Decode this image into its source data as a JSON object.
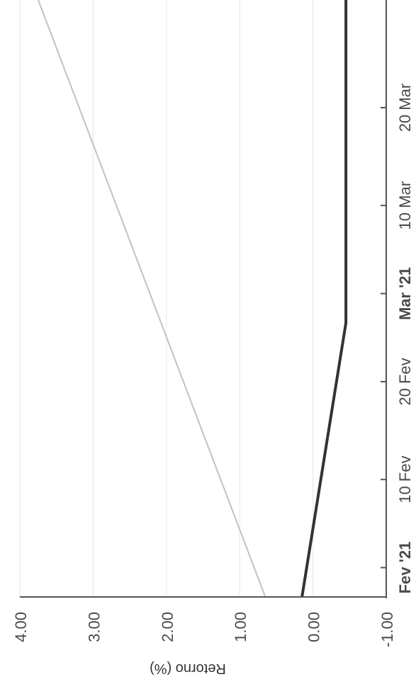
{
  "chart_data": {
    "type": "line",
    "title": "",
    "ylabel": "Retorno (%)",
    "xlabel": "",
    "grid": true,
    "ylim": [
      -1.0,
      4.0
    ],
    "y_ticks": [
      {
        "value": 4.0,
        "label": "4.00"
      },
      {
        "value": 3.0,
        "label": "3.00"
      },
      {
        "value": 2.0,
        "label": "2.00"
      },
      {
        "value": 1.0,
        "label": "1.00"
      },
      {
        "value": 0.0,
        "label": "0.00"
      },
      {
        "value": -1.0,
        "label": "-1.00"
      }
    ],
    "x_range": [
      "2021-01-29",
      "2021-03-31"
    ],
    "x_ticks": [
      {
        "date": "2021-02-01",
        "label": "Fev '21",
        "bold": true
      },
      {
        "date": "2021-02-10",
        "label": "10 Fev",
        "bold": false
      },
      {
        "date": "2021-02-20",
        "label": "20 Fev",
        "bold": false
      },
      {
        "date": "2021-03-01",
        "label": "Mar '21",
        "bold": true
      },
      {
        "date": "2021-03-10",
        "label": "10 Mar",
        "bold": false
      },
      {
        "date": "2021-03-20",
        "label": "20 Mar",
        "bold": false
      }
    ],
    "series": [
      {
        "color": "#c2c2c2",
        "points": [
          {
            "x": "2021-01-29",
            "y": 0.65
          },
          {
            "x": "2021-03-31",
            "y": 3.75
          }
        ]
      },
      {
        "color": "#333333",
        "points": [
          {
            "x": "2021-01-29",
            "y": 0.15
          },
          {
            "x": "2021-02-26",
            "y": -0.45
          },
          {
            "x": "2021-03-31",
            "y": -0.45
          }
        ]
      }
    ]
  }
}
